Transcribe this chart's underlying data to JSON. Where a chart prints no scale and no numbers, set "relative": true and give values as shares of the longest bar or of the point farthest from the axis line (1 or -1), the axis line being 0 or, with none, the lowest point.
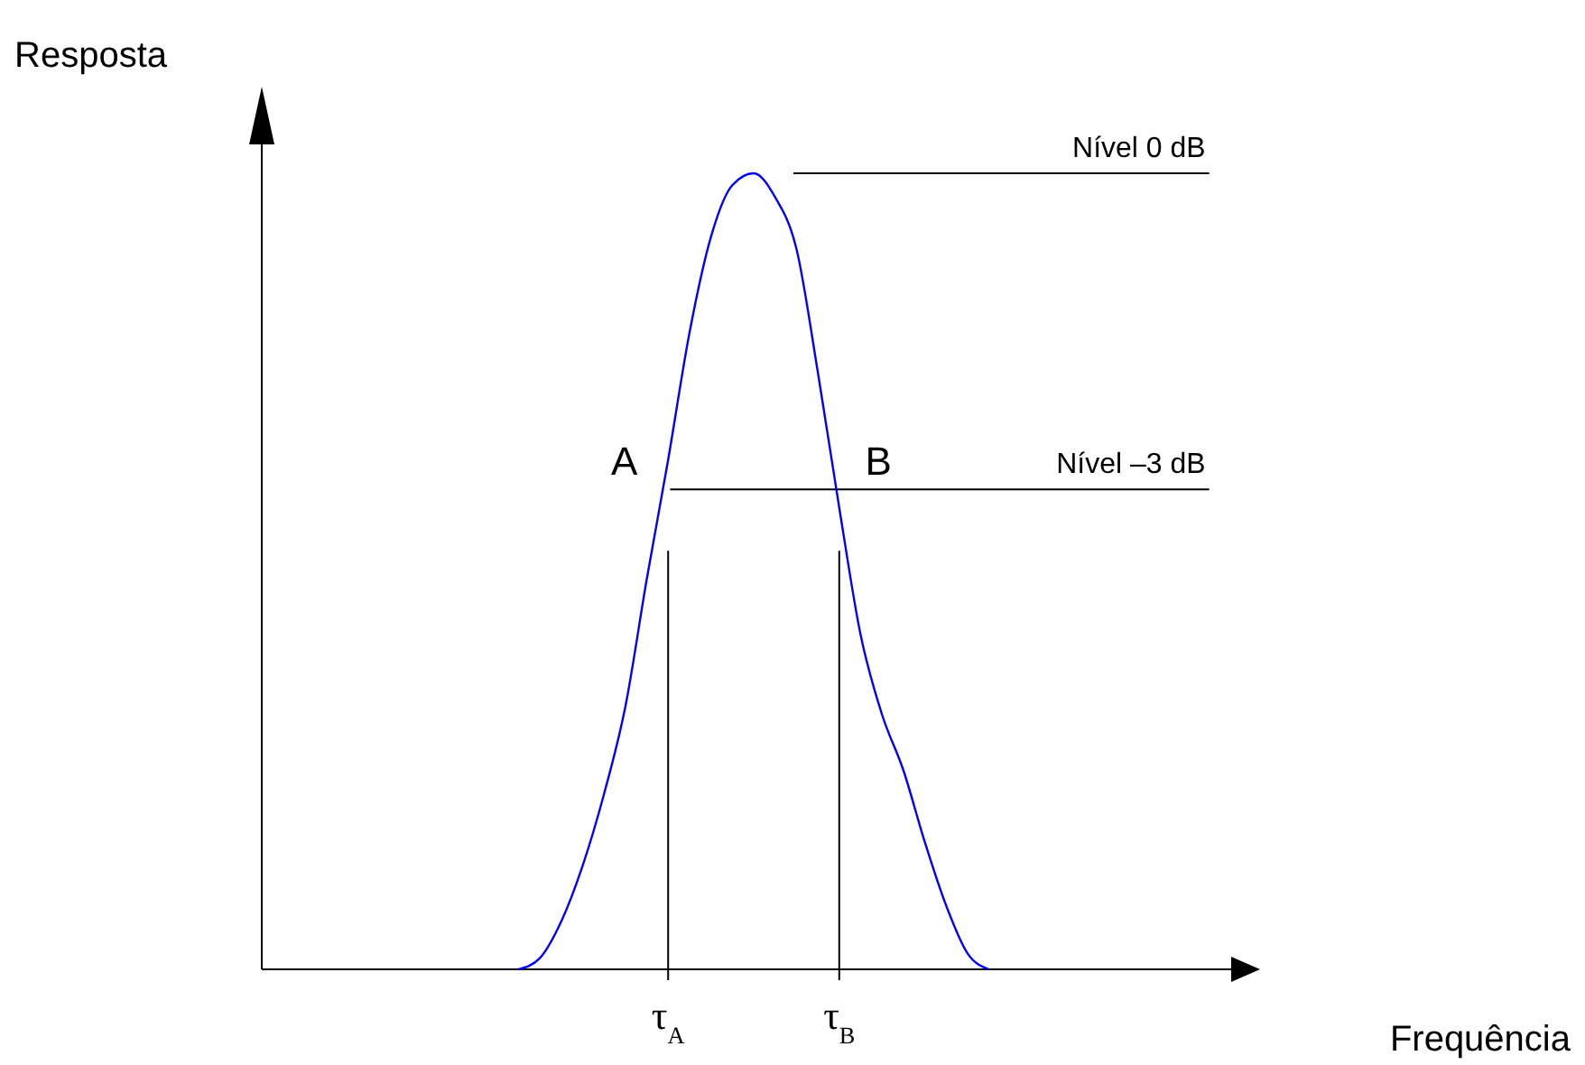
{
  "chart_data": {
    "type": "line",
    "relative": true,
    "xlabel": "Frequência",
    "ylabel": "Resposta",
    "categories": [
      null,
      null,
      null,
      null,
      null,
      null,
      null,
      null,
      null,
      null,
      null,
      null,
      null,
      null,
      null,
      null,
      null,
      null,
      null,
      "τ$_{A}$",
      null,
      null,
      null,
      null,
      null,
      null,
      null,
      "τ$_{B}$",
      null,
      null,
      null,
      null,
      null,
      null,
      null,
      null,
      null,
      null,
      null,
      null,
      null,
      null,
      null,
      null,
      null,
      null,
      null
    ],
    "series": [
      {
        "color": "#0000ff",
        "values": [
          null,
          null,
          null,
          null,
          null,
          null,
          null,
          null,
          null,
          null,
          null,
          null,
          0,
          0.014,
          0.06,
          0.13,
          0.22,
          0.33,
          0.49,
          0.64,
          0.8,
          0.92,
          0.985,
          1,
          0.97,
          0.905,
          0.75,
          0.58,
          0.42,
          0.32,
          0.25,
          0.16,
          0.08,
          0.02,
          0,
          null,
          null,
          null,
          null,
          null,
          null,
          null,
          null,
          null,
          null,
          null,
          null
        ]
      }
    ],
    "ref_lines": [
      {
        "axis": "y",
        "value": 1,
        "label": "Nível 0 dB",
        "color": "#000000"
      },
      {
        "axis": "y",
        "value": 0.603,
        "label": "Nível –3 dB",
        "color": "#000000"
      },
      {
        "axis": "x",
        "value": "τ$_{A}$",
        "color": "#000000"
      },
      {
        "axis": "x",
        "value": "τ$_{B}$",
        "color": "#000000"
      }
    ],
    "annotations": [
      "A",
      "B"
    ],
    "grid": false,
    "marker": "none",
    "line_style": "solid"
  }
}
